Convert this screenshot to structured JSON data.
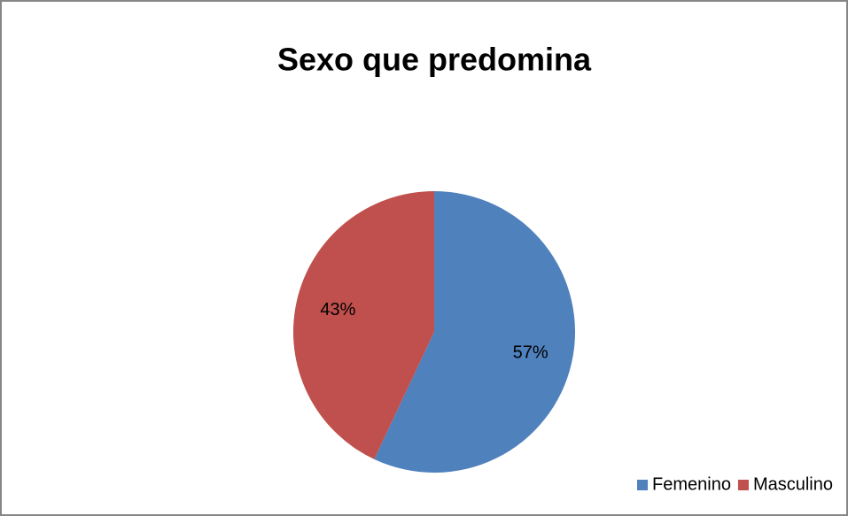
{
  "chart_data": {
    "type": "pie",
    "title": "Sexo que predomina",
    "categories": [
      "Femenino",
      "Masculino"
    ],
    "values": [
      57,
      43
    ],
    "value_labels": [
      "57%",
      "43%"
    ],
    "colors": [
      "#4f81bd",
      "#c0504d"
    ],
    "legend": "bottom-right"
  }
}
